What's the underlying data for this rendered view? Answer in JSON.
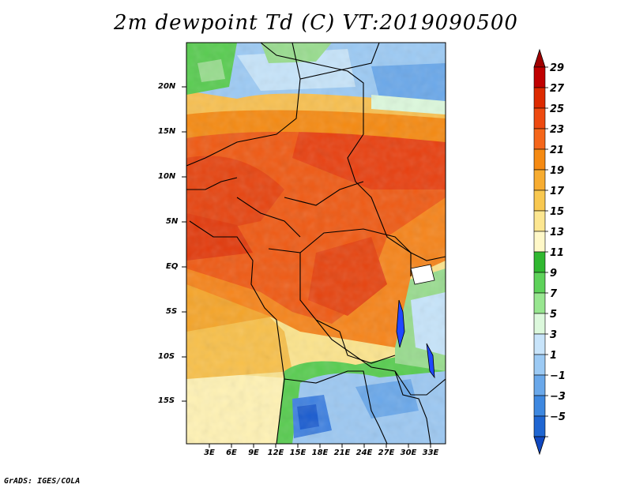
{
  "title": "2m dewpoint Td (C) VT:2019090500",
  "footer": "GrADS: IGES/COLA",
  "map": {
    "variable": "2m dewpoint",
    "units": "C",
    "valid_time": "2019090500",
    "lat_ticks": [
      "20N",
      "15N",
      "10N",
      "5N",
      "EQ",
      "5S",
      "10S",
      "15S"
    ],
    "lon_ticks": [
      "3E",
      "6E",
      "9E",
      "12E",
      "15E",
      "18E",
      "21E",
      "24E",
      "27E",
      "30E",
      "33E"
    ]
  },
  "colorbar": {
    "levels": [
      "29",
      "27",
      "25",
      "23",
      "21",
      "19",
      "17",
      "15",
      "13",
      "11",
      "9",
      "7",
      "5",
      "3",
      "1",
      "−1",
      "−3",
      "−5"
    ],
    "colors": [
      "#a00000",
      "#c00000",
      "#dd2a00",
      "#ee4a10",
      "#f5661a",
      "#f58a12",
      "#f7ac30",
      "#f8c850",
      "#fce690",
      "#fff8c8",
      "#30b830",
      "#5ed25a",
      "#98e690",
      "#dcf8dc",
      "#c8e4fa",
      "#9ccaf4",
      "#6aa8ea",
      "#3e88e0",
      "#1f66d2",
      "#1048c0"
    ]
  },
  "colors": {
    "coast": "#000000",
    "lake": "#2048ff"
  }
}
